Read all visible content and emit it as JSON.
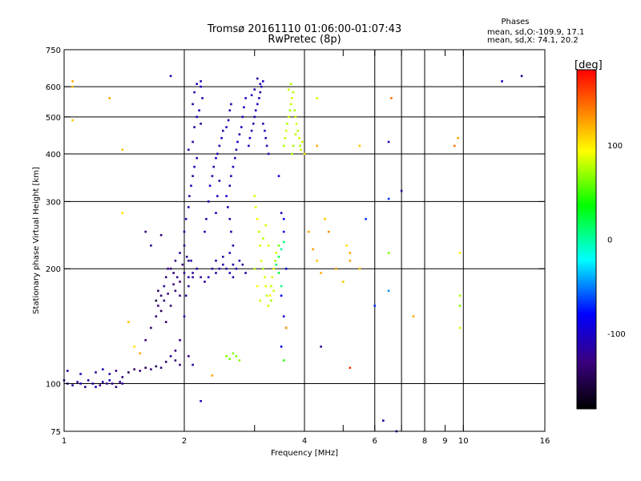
{
  "chart_data": {
    "type": "scatter",
    "title": "Tromsø 20161110 01:06:00-01:07:43",
    "subtitle": "RwPretec (8p)",
    "xlabel": "Frequency [MHz]",
    "ylabel": "Stationary phase Virtual Height [km]",
    "xscale": "log",
    "yscale": "log",
    "xlim": [
      1,
      16
    ],
    "ylim": [
      75,
      750
    ],
    "xticks": [
      1,
      2,
      4,
      6,
      8,
      9,
      10,
      16
    ],
    "xticklabels": [
      "1",
      "2",
      "4",
      "6",
      "8",
      "9",
      "10",
      "16"
    ],
    "xminor": [
      3,
      5,
      7
    ],
    "yticks": [
      75,
      100,
      200,
      300,
      400,
      500,
      600,
      750
    ],
    "yticklabels": [
      "75",
      "100",
      "200",
      "300",
      "400",
      "500",
      "600",
      "750"
    ],
    "grid": true,
    "grid_x": [
      2,
      4,
      6,
      7,
      8,
      10
    ],
    "grid_y": [
      100,
      200,
      300,
      400,
      500,
      600
    ],
    "colorbar": {
      "label": "[deg]",
      "range": [
        -180,
        180
      ],
      "ticks": [
        100,
        0,
        -100
      ],
      "ticklabels": [
        "100",
        "0",
        "-100"
      ]
    },
    "stats": {
      "title": "Phases",
      "line_o": "mean, sd,O:-109.9, 17.1",
      "line_x": "mean, sd,X:  74.1, 20.2"
    },
    "points": [
      [
        1.0,
        102,
        -110
      ],
      [
        1.02,
        100,
        -105
      ],
      [
        1.05,
        99,
        -108
      ],
      [
        1.08,
        101,
        -112
      ],
      [
        1.1,
        100,
        -100
      ],
      [
        1.13,
        98,
        -115
      ],
      [
        1.15,
        102,
        -105
      ],
      [
        1.18,
        100,
        -110
      ],
      [
        1.2,
        98,
        -100
      ],
      [
        1.23,
        99,
        -118
      ],
      [
        1.25,
        101,
        -104
      ],
      [
        1.28,
        100,
        -112
      ],
      [
        1.3,
        102,
        -95
      ],
      [
        1.32,
        100,
        -120
      ],
      [
        1.35,
        98,
        -130
      ],
      [
        1.38,
        101,
        -106
      ],
      [
        1.4,
        100,
        -110
      ],
      [
        1.02,
        108,
        -110
      ],
      [
        1.1,
        106,
        -100
      ],
      [
        1.2,
        107,
        -110
      ],
      [
        1.25,
        109,
        -95
      ],
      [
        1.3,
        106,
        -105
      ],
      [
        1.35,
        108,
        -120
      ],
      [
        1.4,
        104,
        -125
      ],
      [
        1.45,
        107,
        -140
      ],
      [
        1.5,
        109,
        -130
      ],
      [
        1.55,
        108,
        -120
      ],
      [
        1.6,
        110,
        -135
      ],
      [
        1.65,
        109,
        -125
      ],
      [
        1.7,
        111,
        -140
      ],
      [
        1.75,
        110,
        -120
      ],
      [
        1.8,
        114,
        -130
      ],
      [
        1.85,
        118,
        -110
      ],
      [
        1.9,
        122,
        -120
      ],
      [
        1.95,
        130,
        -115
      ],
      [
        2.0,
        150,
        -105
      ],
      [
        2.02,
        170,
        -110
      ],
      [
        2.05,
        190,
        -100
      ],
      [
        2.08,
        210,
        -105
      ],
      [
        1.6,
        130,
        -120
      ],
      [
        1.65,
        140,
        -125
      ],
      [
        1.7,
        150,
        -130
      ],
      [
        1.72,
        160,
        -120
      ],
      [
        1.75,
        170,
        -135
      ],
      [
        1.78,
        180,
        -110
      ],
      [
        1.8,
        190,
        -125
      ],
      [
        1.85,
        200,
        -115
      ],
      [
        1.9,
        210,
        -120
      ],
      [
        1.95,
        220,
        -110
      ],
      [
        2.0,
        230,
        -115
      ],
      [
        1.75,
        155,
        -140
      ],
      [
        1.8,
        145,
        -135
      ],
      [
        1.85,
        160,
        -130
      ],
      [
        1.9,
        175,
        -120
      ],
      [
        1.95,
        185,
        -125
      ],
      [
        2.0,
        195,
        -110
      ],
      [
        2.05,
        210,
        -115
      ],
      [
        1.7,
        165,
        -150
      ],
      [
        1.72,
        175,
        -140
      ],
      [
        1.78,
        165,
        -130
      ],
      [
        1.82,
        172,
        -125
      ],
      [
        1.88,
        182,
        -120
      ],
      [
        1.92,
        190,
        -115
      ],
      [
        1.98,
        205,
        -118
      ],
      [
        2.03,
        215,
        -112
      ],
      [
        1.82,
        200,
        -120
      ],
      [
        1.88,
        195,
        -130
      ],
      [
        1.95,
        170,
        -125
      ],
      [
        2.05,
        180,
        -110
      ],
      [
        2.1,
        190,
        -105
      ],
      [
        1.65,
        230,
        -110
      ],
      [
        1.6,
        250,
        -120
      ],
      [
        1.75,
        245,
        -130
      ],
      [
        2.0,
        250,
        -110
      ],
      [
        2.02,
        270,
        -100
      ],
      [
        2.05,
        290,
        -105
      ],
      [
        2.06,
        310,
        -110
      ],
      [
        2.08,
        330,
        -100
      ],
      [
        2.1,
        350,
        -108
      ],
      [
        2.12,
        370,
        -95
      ],
      [
        2.15,
        390,
        -100
      ],
      [
        2.05,
        410,
        -105
      ],
      [
        2.1,
        430,
        -110
      ],
      [
        2.12,
        470,
        -100
      ],
      [
        2.15,
        500,
        -95
      ],
      [
        2.1,
        540,
        -105
      ],
      [
        2.12,
        580,
        -100
      ],
      [
        2.15,
        610,
        -100
      ],
      [
        2.2,
        620,
        -95
      ],
      [
        2.18,
        520,
        -100
      ],
      [
        2.2,
        480,
        -110
      ],
      [
        2.22,
        560,
        -100
      ],
      [
        2.2,
        600,
        -95
      ],
      [
        2.1,
        195,
        -110
      ],
      [
        2.15,
        200,
        -105
      ],
      [
        2.2,
        190,
        -115
      ],
      [
        2.25,
        185,
        -110
      ],
      [
        2.3,
        190,
        -100
      ],
      [
        2.35,
        200,
        -105
      ],
      [
        2.4,
        195,
        -110
      ],
      [
        2.45,
        200,
        -100
      ],
      [
        2.5,
        205,
        -105
      ],
      [
        2.55,
        200,
        -110
      ],
      [
        2.6,
        195,
        -100
      ],
      [
        2.65,
        205,
        -105
      ],
      [
        2.7,
        200,
        -95
      ],
      [
        2.75,
        210,
        -100
      ],
      [
        2.8,
        205,
        -110
      ],
      [
        2.85,
        195,
        -105
      ],
      [
        2.4,
        210,
        -108
      ],
      [
        2.5,
        215,
        -102
      ],
      [
        2.6,
        220,
        -98
      ],
      [
        2.65,
        190,
        -110
      ],
      [
        2.25,
        250,
        -100
      ],
      [
        2.27,
        270,
        -105
      ],
      [
        2.3,
        300,
        -100
      ],
      [
        2.32,
        330,
        -95
      ],
      [
        2.35,
        350,
        -100
      ],
      [
        2.37,
        370,
        -105
      ],
      [
        2.4,
        390,
        -95
      ],
      [
        2.42,
        400,
        -100
      ],
      [
        2.45,
        420,
        -100
      ],
      [
        2.48,
        440,
        -98
      ],
      [
        2.5,
        460,
        -102
      ],
      [
        2.55,
        470,
        -100
      ],
      [
        2.58,
        490,
        -95
      ],
      [
        2.6,
        520,
        -100
      ],
      [
        2.62,
        540,
        -102
      ],
      [
        2.4,
        280,
        -98
      ],
      [
        2.42,
        310,
        -100
      ],
      [
        2.45,
        340,
        -105
      ],
      [
        2.55,
        310,
        -95
      ],
      [
        2.57,
        290,
        -100
      ],
      [
        2.6,
        270,
        -105
      ],
      [
        2.62,
        250,
        -98
      ],
      [
        2.65,
        230,
        -100
      ],
      [
        2.6,
        330,
        -102
      ],
      [
        2.62,
        350,
        -100
      ],
      [
        2.65,
        370,
        -95
      ],
      [
        2.68,
        390,
        -100
      ],
      [
        2.7,
        410,
        -105
      ],
      [
        2.72,
        430,
        -95
      ],
      [
        2.75,
        450,
        -100
      ],
      [
        2.78,
        470,
        -98
      ],
      [
        2.8,
        500,
        -100
      ],
      [
        2.82,
        530,
        -95
      ],
      [
        2.85,
        560,
        -98
      ],
      [
        2.9,
        420,
        -100
      ],
      [
        2.92,
        440,
        -95
      ],
      [
        2.95,
        460,
        -100
      ],
      [
        2.98,
        480,
        -105
      ],
      [
        3.0,
        500,
        -100
      ],
      [
        3.02,
        520,
        -95
      ],
      [
        3.05,
        540,
        -98
      ],
      [
        3.08,
        560,
        -100
      ],
      [
        3.1,
        580,
        -105
      ],
      [
        3.12,
        600,
        -100
      ],
      [
        3.15,
        620,
        -95
      ],
      [
        3.05,
        630,
        -98
      ],
      [
        3.1,
        610,
        -100
      ],
      [
        3.0,
        590,
        -105
      ],
      [
        2.95,
        570,
        -100
      ],
      [
        3.15,
        480,
        -100
      ],
      [
        3.18,
        460,
        -95
      ],
      [
        3.2,
        440,
        -100
      ],
      [
        3.22,
        420,
        -98
      ],
      [
        3.25,
        400,
        -100
      ],
      [
        2.2,
        90,
        -100
      ],
      [
        2.1,
        112,
        -108
      ],
      [
        1.95,
        112,
        -125
      ],
      [
        1.9,
        115,
        -120
      ],
      [
        3.0,
        310,
        80
      ],
      [
        3.02,
        290,
        85
      ],
      [
        3.05,
        270,
        90
      ],
      [
        3.08,
        250,
        75
      ],
      [
        3.1,
        230,
        80
      ],
      [
        3.12,
        210,
        85
      ],
      [
        3.15,
        200,
        70
      ],
      [
        3.18,
        190,
        80
      ],
      [
        3.2,
        180,
        85
      ],
      [
        3.22,
        170,
        75
      ],
      [
        3.25,
        160,
        80
      ],
      [
        3.28,
        170,
        90
      ],
      [
        3.3,
        180,
        75
      ],
      [
        3.32,
        190,
        80
      ],
      [
        3.35,
        200,
        85
      ],
      [
        3.38,
        210,
        70
      ],
      [
        3.4,
        220,
        80
      ],
      [
        3.15,
        240,
        75
      ],
      [
        3.2,
        260,
        80
      ],
      [
        3.25,
        230,
        85
      ],
      [
        3.3,
        165,
        70
      ],
      [
        3.35,
        175,
        80
      ],
      [
        3.05,
        180,
        90
      ],
      [
        3.1,
        165,
        80
      ],
      [
        3.0,
        200,
        75
      ],
      [
        3.45,
        230,
        60
      ],
      [
        3.4,
        205,
        10
      ],
      [
        3.45,
        215,
        15
      ],
      [
        3.5,
        225,
        -5
      ],
      [
        3.55,
        235,
        10
      ],
      [
        3.45,
        195,
        20
      ],
      [
        3.5,
        180,
        5
      ],
      [
        3.55,
        420,
        70
      ],
      [
        3.58,
        440,
        75
      ],
      [
        3.6,
        460,
        80
      ],
      [
        3.62,
        480,
        72
      ],
      [
        3.65,
        500,
        78
      ],
      [
        3.68,
        520,
        70
      ],
      [
        3.7,
        540,
        76
      ],
      [
        3.72,
        560,
        80
      ],
      [
        3.75,
        580,
        74
      ],
      [
        3.78,
        520,
        70
      ],
      [
        3.8,
        500,
        75
      ],
      [
        3.82,
        480,
        80
      ],
      [
        3.85,
        460,
        72
      ],
      [
        3.88,
        440,
        78
      ],
      [
        3.9,
        420,
        70
      ],
      [
        3.92,
        410,
        76
      ],
      [
        3.95,
        430,
        80
      ],
      [
        3.72,
        400,
        74
      ],
      [
        3.75,
        420,
        70
      ],
      [
        3.8,
        450,
        75
      ],
      [
        3.65,
        590,
        80
      ],
      [
        3.7,
        610,
        72
      ],
      [
        3.45,
        350,
        -80
      ],
      [
        3.5,
        280,
        -90
      ],
      [
        3.55,
        250,
        -85
      ],
      [
        3.6,
        200,
        -80
      ],
      [
        3.5,
        170,
        -70
      ],
      [
        3.55,
        150,
        -85
      ],
      [
        3.6,
        140,
        -90
      ],
      [
        3.5,
        125,
        -80
      ],
      [
        3.55,
        115,
        40
      ],
      [
        3.6,
        140,
        120
      ],
      [
        3.55,
        270,
        -80
      ],
      [
        2.55,
        118,
        60
      ],
      [
        2.6,
        116,
        55
      ],
      [
        2.65,
        120,
        62
      ],
      [
        2.7,
        118,
        58
      ],
      [
        2.75,
        115,
        60
      ],
      [
        2.05,
        118,
        -115
      ],
      [
        1.05,
        620,
        120
      ],
      [
        1.05,
        600,
        115
      ],
      [
        1.05,
        490,
        110
      ],
      [
        1.3,
        560,
        120
      ],
      [
        1.4,
        410,
        110
      ],
      [
        1.4,
        280,
        100
      ],
      [
        1.45,
        145,
        110
      ],
      [
        1.5,
        125,
        100
      ],
      [
        1.55,
        120,
        120
      ],
      [
        1.85,
        640,
        -100
      ],
      [
        2.35,
        105,
        120
      ],
      [
        4.0,
        400,
        100
      ],
      [
        4.1,
        250,
        120
      ],
      [
        4.2,
        225,
        125
      ],
      [
        4.3,
        210,
        110
      ],
      [
        4.4,
        195,
        120
      ],
      [
        4.5,
        270,
        110
      ],
      [
        4.6,
        250,
        130
      ],
      [
        4.8,
        200,
        120
      ],
      [
        5.0,
        185,
        110
      ],
      [
        5.2,
        210,
        120
      ],
      [
        5.5,
        200,
        110
      ],
      [
        5.7,
        270,
        -60
      ],
      [
        6.0,
        160,
        -60
      ],
      [
        6.5,
        175,
        -40
      ],
      [
        6.5,
        220,
        60
      ],
      [
        6.5,
        430,
        -100
      ],
      [
        6.6,
        560,
        140
      ],
      [
        6.5,
        305,
        -60
      ],
      [
        6.3,
        80,
        -110
      ],
      [
        7.0,
        320,
        -110
      ],
      [
        7.5,
        150,
        120
      ],
      [
        9.5,
        420,
        140
      ],
      [
        9.7,
        440,
        120
      ],
      [
        9.8,
        160,
        60
      ],
      [
        9.8,
        170,
        70
      ],
      [
        9.8,
        140,
        80
      ],
      [
        9.8,
        220,
        90
      ],
      [
        12.5,
        620,
        -100
      ],
      [
        14.0,
        640,
        -110
      ],
      [
        5.2,
        110,
        160
      ],
      [
        4.4,
        125,
        -110
      ],
      [
        5.2,
        220,
        120
      ],
      [
        4.3,
        420,
        120
      ],
      [
        5.5,
        420,
        110
      ],
      [
        4.3,
        560,
        80
      ],
      [
        5.1,
        230,
        100
      ],
      [
        6.8,
        75,
        -100
      ]
    ]
  }
}
